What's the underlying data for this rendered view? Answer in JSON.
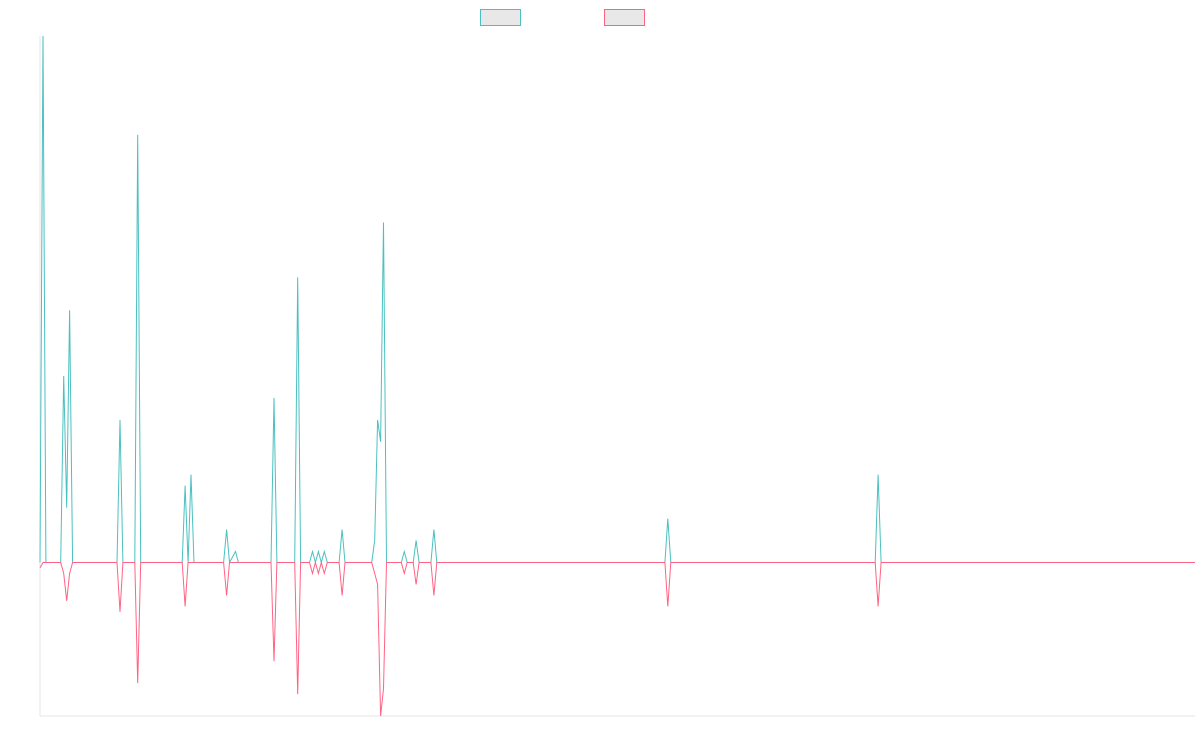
{
  "colors": {
    "series_a": "#4bc0c0",
    "series_b": "#ff6384",
    "legend_fill": "#e8e8e8",
    "axis": "#e6e6e6"
  },
  "chart_data": {
    "type": "line",
    "title": "",
    "xlabel": "",
    "ylabel": "",
    "grid": false,
    "legend_position": "top-center",
    "ylim": [
      -14,
      48
    ],
    "x_count": 391,
    "series": [
      {
        "color": "#4bc0c0",
        "points": [
          [
            0,
            0
          ],
          [
            1,
            48
          ],
          [
            2,
            0
          ],
          [
            7,
            0
          ],
          [
            8,
            17
          ],
          [
            9,
            5
          ],
          [
            10,
            23
          ],
          [
            11,
            0
          ],
          [
            26,
            0
          ],
          [
            27,
            13
          ],
          [
            28,
            0
          ],
          [
            32,
            0
          ],
          [
            33,
            39
          ],
          [
            34,
            0
          ],
          [
            48,
            0
          ],
          [
            49,
            7
          ],
          [
            50,
            0
          ],
          [
            51,
            8
          ],
          [
            52,
            0
          ],
          [
            62,
            0
          ],
          [
            63,
            3
          ],
          [
            64,
            0
          ],
          [
            66,
            1
          ],
          [
            67,
            0
          ],
          [
            78,
            0
          ],
          [
            79,
            15
          ],
          [
            80,
            0
          ],
          [
            86,
            0
          ],
          [
            87,
            26
          ],
          [
            88,
            0
          ],
          [
            91,
            0
          ],
          [
            92,
            1
          ],
          [
            93,
            0
          ],
          [
            94,
            1
          ],
          [
            95,
            0
          ],
          [
            96,
            1
          ],
          [
            97,
            0
          ],
          [
            101,
            0
          ],
          [
            102,
            3
          ],
          [
            103,
            0
          ],
          [
            112,
            0
          ],
          [
            113,
            2
          ],
          [
            114,
            13
          ],
          [
            115,
            11
          ],
          [
            116,
            31
          ],
          [
            117,
            0
          ],
          [
            122,
            0
          ],
          [
            123,
            1
          ],
          [
            124,
            0
          ],
          [
            126,
            0
          ],
          [
            127,
            2
          ],
          [
            128,
            0
          ],
          [
            132,
            0
          ],
          [
            133,
            3
          ],
          [
            134,
            0
          ],
          [
            211,
            0
          ],
          [
            212,
            4
          ],
          [
            213,
            0
          ],
          [
            282,
            0
          ],
          [
            283,
            8
          ],
          [
            284,
            0
          ],
          [
            390,
            0
          ]
        ]
      },
      {
        "color": "#ff6384",
        "points": [
          [
            0,
            -0.5
          ],
          [
            1,
            0
          ],
          [
            2,
            0
          ],
          [
            7,
            0
          ],
          [
            8,
            -1
          ],
          [
            9,
            -3.5
          ],
          [
            10,
            -1
          ],
          [
            11,
            0
          ],
          [
            26,
            0
          ],
          [
            27,
            -4.5
          ],
          [
            28,
            0
          ],
          [
            32,
            0
          ],
          [
            33,
            -11
          ],
          [
            34,
            0
          ],
          [
            48,
            0
          ],
          [
            49,
            -4
          ],
          [
            50,
            0
          ],
          [
            62,
            0
          ],
          [
            63,
            -3
          ],
          [
            64,
            0
          ],
          [
            78,
            0
          ],
          [
            79,
            -9
          ],
          [
            80,
            0
          ],
          [
            86,
            0
          ],
          [
            87,
            -12
          ],
          [
            88,
            0
          ],
          [
            91,
            0
          ],
          [
            92,
            -1
          ],
          [
            93,
            0
          ],
          [
            94,
            -1
          ],
          [
            95,
            0
          ],
          [
            96,
            -1
          ],
          [
            97,
            0
          ],
          [
            101,
            0
          ],
          [
            102,
            -3
          ],
          [
            103,
            0
          ],
          [
            112,
            0
          ],
          [
            113,
            -1
          ],
          [
            114,
            -2
          ],
          [
            115,
            -14
          ],
          [
            116,
            -11.5
          ],
          [
            117,
            0
          ],
          [
            122,
            0
          ],
          [
            123,
            -1
          ],
          [
            124,
            0
          ],
          [
            126,
            0
          ],
          [
            127,
            -2
          ],
          [
            128,
            0
          ],
          [
            132,
            0
          ],
          [
            133,
            -3
          ],
          [
            134,
            0
          ],
          [
            211,
            0
          ],
          [
            212,
            -4
          ],
          [
            213,
            0
          ],
          [
            282,
            0
          ],
          [
            283,
            -4
          ],
          [
            284,
            0
          ],
          [
            390,
            0
          ]
        ]
      }
    ]
  }
}
